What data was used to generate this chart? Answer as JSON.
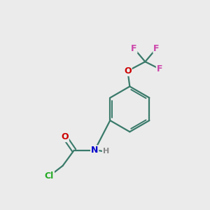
{
  "background_color": "#ebebeb",
  "bond_color": "#3a7a6a",
  "atom_colors": {
    "F": "#cc44aa",
    "O": "#cc0000",
    "N": "#0000cc",
    "Cl": "#22aa22",
    "H": "#888888",
    "C": "#000000"
  },
  "figsize": [
    3.0,
    3.0
  ],
  "dpi": 100
}
